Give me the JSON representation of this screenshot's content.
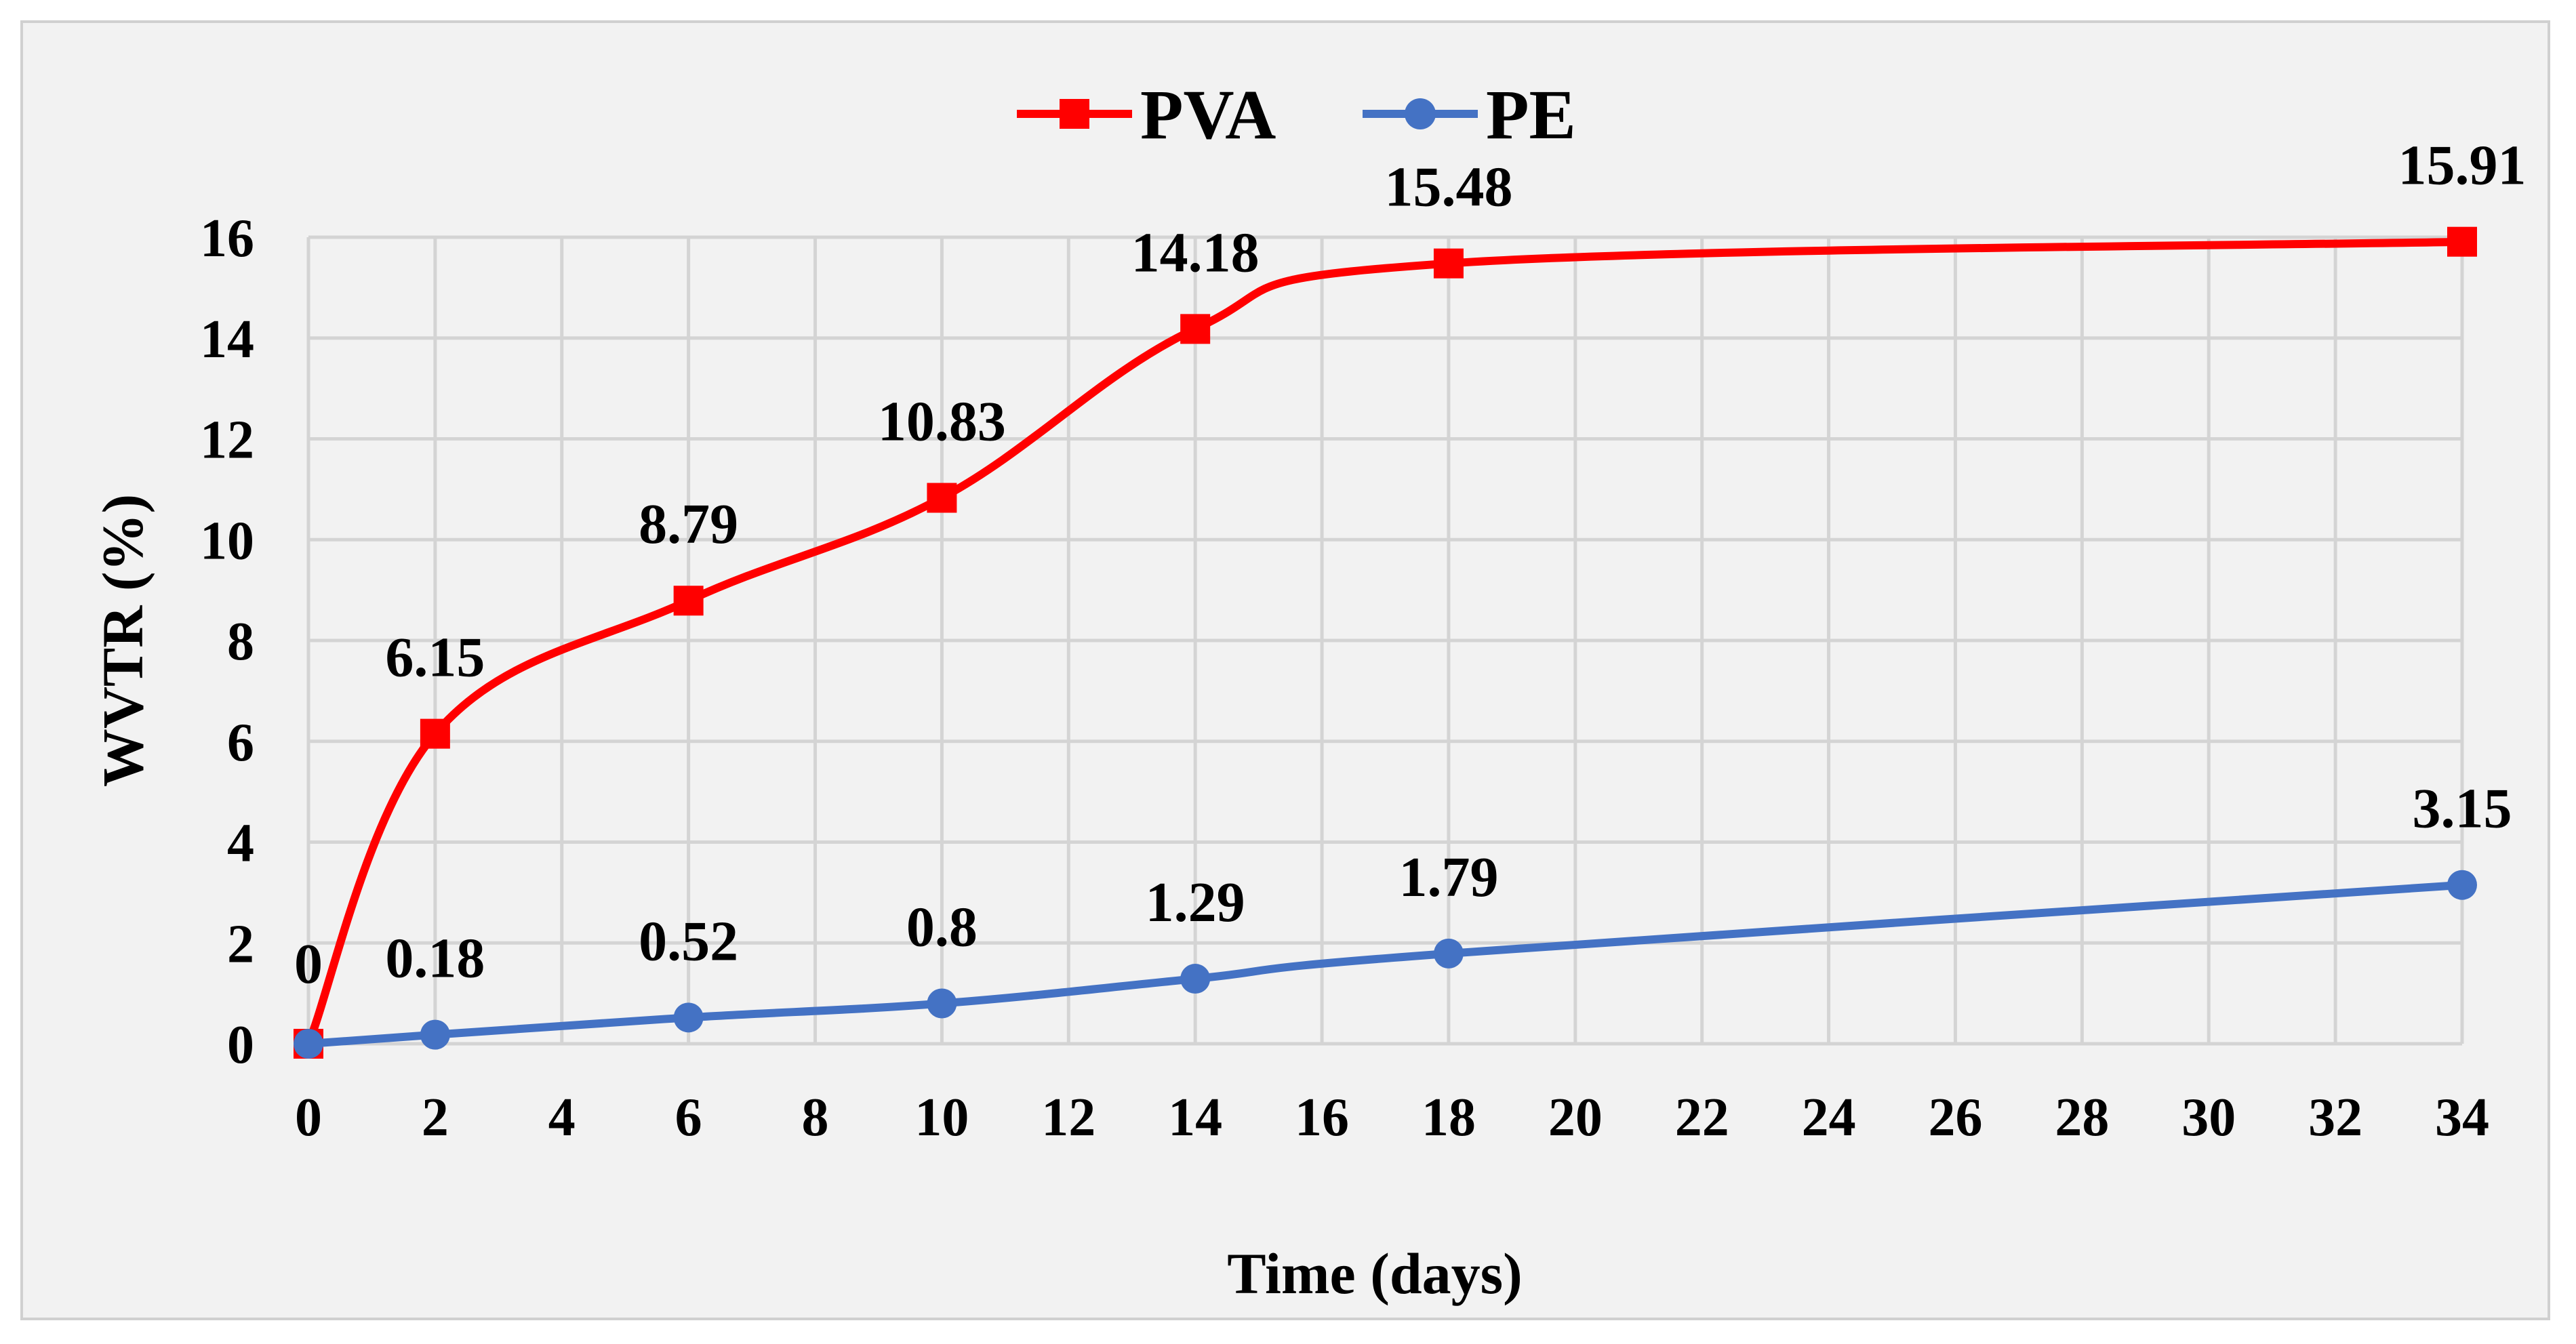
{
  "chart_data": {
    "type": "line",
    "title": "",
    "xlabel": "Time (days)",
    "ylabel": "WVTR (%)",
    "xlim": [
      0,
      34
    ],
    "ylim": [
      0,
      16
    ],
    "x_ticks": [
      "0",
      "2",
      "4",
      "6",
      "8",
      "10",
      "12",
      "14",
      "16",
      "18",
      "20",
      "22",
      "24",
      "26",
      "28",
      "30",
      "32",
      "34"
    ],
    "y_ticks": [
      "0",
      "2",
      "4",
      "6",
      "8",
      "10",
      "12",
      "14",
      "16"
    ],
    "grid": true,
    "legend_position": "top-center",
    "x": [
      0,
      2,
      6,
      10,
      14,
      18,
      34
    ],
    "series": [
      {
        "name": "PVA",
        "color": "#ff0000",
        "marker": "square",
        "smooth": true,
        "values": [
          0,
          6.15,
          8.79,
          10.83,
          14.18,
          15.48,
          15.91
        ],
        "labels": [
          "0",
          "6.15",
          "8.79",
          "10.83",
          "14.18",
          "15.48",
          "15.91"
        ]
      },
      {
        "name": "PE",
        "color": "#4472c4",
        "marker": "circle",
        "smooth": true,
        "values": [
          0,
          0.18,
          0.52,
          0.8,
          1.29,
          1.79,
          3.15
        ],
        "labels": [
          "",
          "0.18",
          "0.52",
          "0.8",
          "1.29",
          "1.79",
          "3.15"
        ]
      }
    ]
  }
}
